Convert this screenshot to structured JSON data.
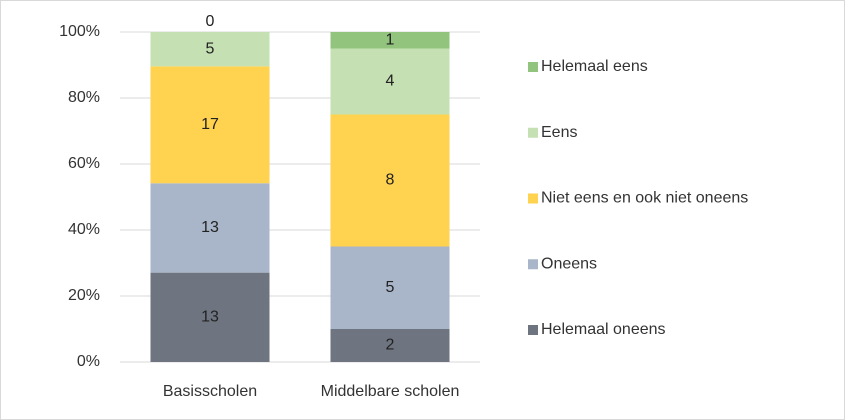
{
  "chart_data": {
    "type": "bar",
    "stack": "percent",
    "categories": [
      "Basisscholen",
      "Middelbare scholen"
    ],
    "series": [
      {
        "name": "Helemaal oneens",
        "color": "#6e7580",
        "values": [
          13,
          2
        ]
      },
      {
        "name": "Oneens",
        "color": "#a9b5c8",
        "values": [
          13,
          5
        ]
      },
      {
        "name": "Niet eens en ook niet oneens",
        "color": "#ffd24f",
        "values": [
          17,
          8
        ]
      },
      {
        "name": "Eens",
        "color": "#c5e0b2",
        "values": [
          5,
          4
        ]
      },
      {
        "name": "Helemaal eens",
        "color": "#92c47d",
        "values": [
          0,
          1
        ]
      }
    ],
    "ylim": [
      0,
      100
    ],
    "yticks": [
      {
        "value": 0,
        "label": "0%"
      },
      {
        "value": 20,
        "label": "20%"
      },
      {
        "value": 40,
        "label": "40%"
      },
      {
        "value": 60,
        "label": "60%"
      },
      {
        "value": 80,
        "label": "80%"
      },
      {
        "value": 100,
        "label": "100%"
      }
    ],
    "grid": true,
    "legend": "right"
  }
}
